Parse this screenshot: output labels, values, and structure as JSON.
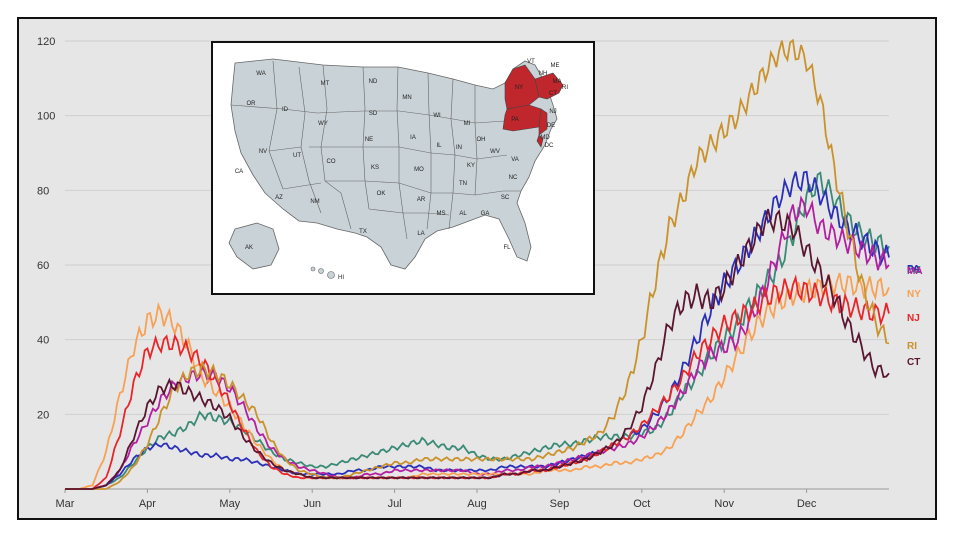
{
  "chart_data": {
    "type": "line",
    "title": "",
    "xlabel": "",
    "ylabel": "",
    "x_ticks": [
      "Mar",
      "Apr",
      "May",
      "Jun",
      "Jul",
      "Aug",
      "Sep",
      "Oct",
      "Nov",
      "Dec"
    ],
    "y_ticks": [
      "20",
      "40",
      "60",
      "80",
      "100",
      "120"
    ],
    "ylim": [
      0,
      120
    ],
    "grid": true,
    "x": [
      0,
      5,
      10,
      15,
      20,
      25,
      30,
      35,
      40,
      45,
      50,
      55,
      60,
      65,
      70,
      75,
      80,
      85,
      90,
      95,
      100,
      105,
      110,
      115,
      120,
      125,
      130,
      135,
      140,
      145,
      150,
      155,
      160,
      165,
      170,
      175,
      180,
      185,
      190,
      195,
      200,
      205,
      210,
      215,
      220,
      225,
      230,
      235,
      240,
      245,
      250,
      255,
      260,
      265,
      270,
      275,
      280,
      285,
      290,
      295,
      300
    ],
    "series": [
      {
        "name": "DE",
        "color": "#3a8a76",
        "values": [
          0,
          0,
          0,
          1,
          3,
          7,
          11,
          14,
          15,
          17,
          20,
          19,
          18,
          16,
          13,
          10,
          8,
          7,
          6,
          6,
          7,
          8,
          9,
          10,
          11,
          12,
          13,
          12,
          11,
          11,
          9,
          8,
          8,
          9,
          10,
          11,
          12,
          12,
          13,
          14,
          14,
          14,
          15,
          16,
          20,
          26,
          30,
          36,
          40,
          44,
          50,
          55,
          60,
          68,
          78,
          83,
          78,
          72,
          68,
          66,
          65
        ]
      },
      {
        "name": "PA",
        "color": "#2a2fb8",
        "values": [
          0,
          0,
          0,
          1,
          4,
          8,
          11,
          12,
          11,
          10,
          9,
          9,
          8,
          8,
          7,
          6,
          5,
          4,
          4,
          4,
          4,
          5,
          5,
          6,
          6,
          6,
          6,
          5,
          5,
          5,
          5,
          5,
          6,
          6,
          6,
          6,
          7,
          8,
          9,
          10,
          12,
          14,
          16,
          20,
          25,
          32,
          40,
          48,
          55,
          60,
          66,
          72,
          78,
          82,
          83,
          79,
          74,
          70,
          67,
          64,
          62
        ]
      },
      {
        "name": "MA",
        "color": "#b21fa0",
        "values": [
          0,
          0,
          0,
          1,
          5,
          12,
          18,
          24,
          28,
          30,
          31,
          30,
          27,
          22,
          16,
          11,
          8,
          6,
          5,
          4,
          3,
          3,
          4,
          4,
          5,
          5,
          5,
          5,
          5,
          5,
          4,
          4,
          5,
          5,
          6,
          6,
          7,
          8,
          9,
          10,
          11,
          12,
          14,
          17,
          21,
          26,
          32,
          36,
          38,
          40,
          46,
          54,
          64,
          74,
          76,
          70,
          68,
          66,
          64,
          62,
          60
        ]
      },
      {
        "name": "NY",
        "color": "#f7a154",
        "values": [
          0,
          0,
          1,
          10,
          25,
          38,
          45,
          47,
          44,
          38,
          30,
          26,
          22,
          17,
          12,
          8,
          5,
          4,
          3,
          3,
          3,
          3,
          3,
          3,
          3,
          3,
          4,
          4,
          4,
          4,
          4,
          4,
          4,
          4,
          4,
          5,
          5,
          5,
          6,
          6,
          7,
          7,
          8,
          9,
          11,
          15,
          20,
          24,
          30,
          36,
          42,
          47,
          50,
          52,
          53,
          54,
          55,
          55,
          54,
          54,
          54
        ]
      },
      {
        "name": "NJ",
        "color": "#e8262a",
        "values": [
          0,
          0,
          0,
          3,
          15,
          28,
          37,
          39,
          39,
          37,
          34,
          29,
          23,
          16,
          10,
          6,
          4,
          3,
          3,
          3,
          3,
          3,
          3,
          3,
          3,
          3,
          3,
          3,
          3,
          3,
          3,
          3,
          4,
          4,
          5,
          5,
          6,
          7,
          8,
          10,
          12,
          14,
          17,
          21,
          25,
          30,
          36,
          40,
          44,
          46,
          48,
          51,
          53,
          54,
          53,
          52,
          50,
          49,
          48,
          47,
          47
        ]
      },
      {
        "name": "RI",
        "color": "#c9922c",
        "values": [
          0,
          0,
          0,
          0,
          2,
          6,
          12,
          20,
          27,
          31,
          32,
          31,
          28,
          24,
          20,
          13,
          8,
          5,
          4,
          3,
          3,
          4,
          5,
          6,
          7,
          7,
          8,
          8,
          8,
          8,
          8,
          8,
          8,
          8,
          8,
          9,
          10,
          11,
          13,
          15,
          20,
          28,
          40,
          56,
          70,
          78,
          88,
          92,
          96,
          100,
          106,
          112,
          117,
          118,
          115,
          104,
          86,
          70,
          55,
          45,
          39
        ]
      },
      {
        "name": "CT",
        "color": "#5a1530",
        "values": [
          0,
          0,
          0,
          1,
          5,
          14,
          22,
          27,
          28,
          26,
          24,
          22,
          19,
          14,
          10,
          7,
          5,
          4,
          3,
          3,
          3,
          3,
          3,
          3,
          3,
          3,
          3,
          3,
          3,
          3,
          3,
          3,
          4,
          4,
          5,
          5,
          6,
          7,
          8,
          10,
          12,
          16,
          22,
          32,
          44,
          50,
          52,
          50,
          54,
          60,
          66,
          72,
          72,
          70,
          64,
          58,
          52,
          44,
          38,
          32,
          31
        ]
      }
    ]
  },
  "map": {
    "states": [
      "WA",
      "OR",
      "ID",
      "MT",
      "ND",
      "SD",
      "MN",
      "WI",
      "MI",
      "NY",
      "VT",
      "NH",
      "ME",
      "MA",
      "RI",
      "CT",
      "NJ",
      "DE",
      "MD",
      "DC",
      "PA",
      "OH",
      "IN",
      "IL",
      "IA",
      "NE",
      "WY",
      "NV",
      "CA",
      "UT",
      "CO",
      "KS",
      "MO",
      "KY",
      "WV",
      "VA",
      "NC",
      "TN",
      "OK",
      "AR",
      "MS",
      "AL",
      "GA",
      "SC",
      "FL",
      "LA",
      "TX",
      "NM",
      "AZ",
      "AK",
      "HI"
    ],
    "highlighted": [
      "NY",
      "PA",
      "NJ",
      "CT",
      "RI",
      "MA",
      "DE"
    ],
    "highlight_color": "#c0272d",
    "base_color": "#c9d2d6"
  }
}
